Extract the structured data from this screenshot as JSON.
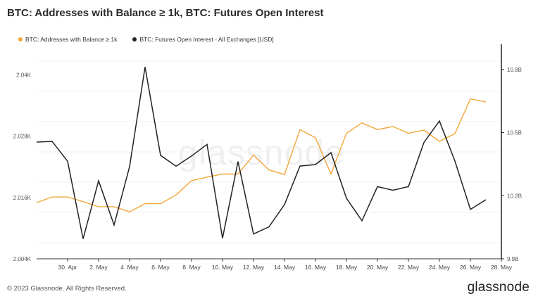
{
  "title": "BTC: Addresses with Balance ≥ 1k, BTC: Futures Open Interest",
  "footer": "© 2023 Glassnode. All Rights Reserved.",
  "brand": "glassnode",
  "watermark": "glassnode",
  "chart_data": {
    "type": "line",
    "legend_position": "top-left",
    "grid": true,
    "series": [
      {
        "name": "BTC: Addresses with Balance ≥ 1k",
        "color": "#f2a73b",
        "axis": "left",
        "values": [
          2015.0,
          2016.1,
          2016.1,
          2015.2,
          2014.2,
          2014.2,
          2013.2,
          2014.8,
          2014.8,
          2016.5,
          2019.3,
          2020.0,
          2020.6,
          2020.6,
          2024.3,
          2021.4,
          2020.5,
          2029.3,
          2027.7,
          2020.6,
          2028.6,
          2030.6,
          2029.3,
          2029.9,
          2028.6,
          2029.2,
          2027.0,
          2028.5,
          2035.3,
          2034.7
        ]
      },
      {
        "name": "BTC: Futures Open Interest - All Exchanges [USD]",
        "color": "#222222",
        "axis": "right",
        "values": [
          10.455,
          10.458,
          10.364,
          9.995,
          10.271,
          10.061,
          10.338,
          10.812,
          10.392,
          10.34,
          10.389,
          10.444,
          9.998,
          10.363,
          10.018,
          10.052,
          10.158,
          10.341,
          10.348,
          10.405,
          10.188,
          10.081,
          10.243,
          10.226,
          10.243,
          10.453,
          10.555,
          10.365,
          10.135,
          10.181
        ]
      }
    ],
    "x": [
      "2023-04-28",
      "2023-04-29",
      "2023-04-30",
      "2023-05-01",
      "2023-05-02",
      "2023-05-03",
      "2023-05-04",
      "2023-05-05",
      "2023-05-06",
      "2023-05-07",
      "2023-05-08",
      "2023-05-09",
      "2023-05-10",
      "2023-05-11",
      "2023-05-12",
      "2023-05-13",
      "2023-05-14",
      "2023-05-15",
      "2023-05-16",
      "2023-05-17",
      "2023-05-18",
      "2023-05-19",
      "2023-05-20",
      "2023-05-21",
      "2023-05-22",
      "2023-05-23",
      "2023-05-24",
      "2023-05-25",
      "2023-05-26",
      "2023-05-27"
    ],
    "x_ticks": [
      "30. Apr",
      "2. May",
      "4. May",
      "6. May",
      "8. May",
      "10. May",
      "12. May",
      "14. May",
      "16. May",
      "18. May",
      "20. May",
      "22. May",
      "24. May",
      "26. May",
      "28. May"
    ],
    "x_range": [
      "2023-04-28",
      "2023-05-28"
    ],
    "y_left": {
      "ticks": [
        "2.004K",
        "2.016K",
        "2.028K",
        "2.04K"
      ],
      "range": [
        2004,
        2046
      ]
    },
    "y_right": {
      "ticks": [
        "9.9B",
        "10.2B",
        "10.5B",
        "10.8B"
      ],
      "range": [
        9.9,
        10.92
      ]
    }
  }
}
